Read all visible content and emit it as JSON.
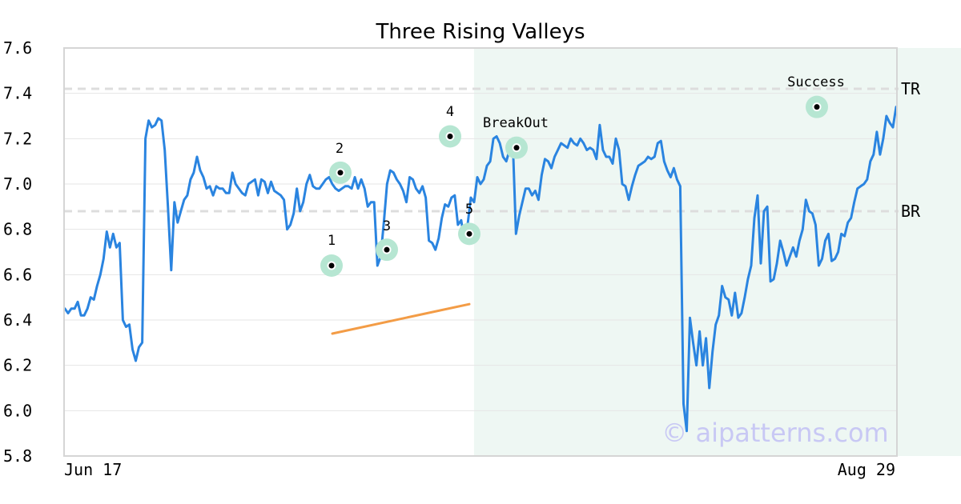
{
  "chart_data": {
    "type": "line",
    "title": "Three Rising Valleys",
    "watermark": "© aipatterns.com",
    "xlabel": "",
    "ylabel": "",
    "ylim": [
      5.8,
      7.6
    ],
    "yticks": [
      "5.8",
      "6.0",
      "6.2",
      "6.4",
      "6.6",
      "6.8",
      "7.0",
      "7.2",
      "7.4",
      "7.6"
    ],
    "x_tick_labels": {
      "start": "Jun 17",
      "end": "Aug 29"
    },
    "grid": "horizontal",
    "colors": {
      "line": "#2a84e0",
      "trend": "#f39c46",
      "marker_halo": "#b6e6d2",
      "pattern_zone": "#eef7f3",
      "level_line": "#dddddd",
      "watermark": "#c8c8f4"
    },
    "levels": [
      {
        "label": "TR",
        "value": 7.42
      },
      {
        "label": "BR",
        "value": 6.88
      }
    ],
    "pattern_zone": {
      "from_index": 127,
      "to_index": 370
    },
    "series": [
      {
        "values": [
          6.45,
          6.43,
          6.45,
          6.45,
          6.48,
          6.42,
          6.42,
          6.45,
          6.5,
          6.49,
          6.55,
          6.6,
          6.67,
          6.79,
          6.72,
          6.78,
          6.72,
          6.74,
          6.4,
          6.37,
          6.38,
          6.27,
          6.22,
          6.28,
          6.3,
          7.2,
          7.28,
          7.25,
          7.26,
          7.29,
          7.28,
          7.15,
          6.9,
          6.62,
          6.92,
          6.83,
          6.88,
          6.93,
          6.95,
          7.02,
          7.05,
          7.12,
          7.06,
          7.03,
          6.98,
          6.99,
          6.95,
          6.99,
          6.98,
          6.98,
          6.96,
          6.96,
          7.05,
          7.0,
          6.98,
          6.96,
          6.95,
          7.0,
          7.01,
          7.02,
          6.95,
          7.02,
          7.01,
          6.96,
          7.01,
          6.97,
          6.96,
          6.95,
          6.93,
          6.8,
          6.82,
          6.87,
          6.98,
          6.88,
          6.92,
          7.0,
          7.04,
          6.99,
          6.98,
          6.98,
          7.0,
          7.02,
          7.03,
          7.0,
          6.98,
          6.97,
          6.98,
          6.99,
          6.99,
          6.98,
          7.03,
          6.98,
          7.02,
          6.98,
          6.9,
          6.92,
          6.92,
          6.64,
          6.68,
          6.83,
          7.0,
          7.06,
          7.05,
          7.02,
          7.0,
          6.97,
          6.92,
          7.03,
          7.02,
          6.98,
          6.96,
          6.99,
          6.94,
          6.75,
          6.74,
          6.71,
          6.76,
          6.85,
          6.91,
          6.9,
          6.94,
          6.95,
          6.82,
          6.84,
          6.75,
          6.82,
          6.94,
          6.92,
          7.03,
          7.0,
          7.02,
          7.08,
          7.1,
          7.2,
          7.21,
          7.18,
          7.12,
          7.1,
          7.15,
          7.2,
          6.78,
          6.86,
          6.92,
          6.98,
          6.98,
          6.95,
          6.97,
          6.93,
          7.04,
          7.11,
          7.1,
          7.07,
          7.12,
          7.15,
          7.18,
          7.17,
          7.16,
          7.2,
          7.18,
          7.17,
          7.2,
          7.18,
          7.15,
          7.16,
          7.15,
          7.11,
          7.26,
          7.15,
          7.12,
          7.12,
          7.09,
          7.2,
          7.15,
          7.0,
          6.99,
          6.93,
          6.99,
          7.04,
          7.08,
          7.09,
          7.1,
          7.12,
          7.11,
          7.12,
          7.18,
          7.19,
          7.1,
          7.06,
          7.03,
          7.07,
          7.02,
          6.99,
          6.03,
          5.91,
          6.41,
          6.3,
          6.2,
          6.35,
          6.2,
          6.32,
          6.1,
          6.26,
          6.38,
          6.42,
          6.55,
          6.5,
          6.49,
          6.42,
          6.52,
          6.41,
          6.43,
          6.5,
          6.58,
          6.64,
          6.85,
          6.95,
          6.65,
          6.88,
          6.9,
          6.57,
          6.58,
          6.65,
          6.75,
          6.7,
          6.64,
          6.68,
          6.72,
          6.68,
          6.75,
          6.8,
          6.93,
          6.88,
          6.87,
          6.82,
          6.64,
          6.67,
          6.75,
          6.78,
          6.66,
          6.67,
          6.7,
          6.78,
          6.77,
          6.83,
          6.85,
          6.92,
          6.98,
          6.99,
          7.0,
          7.02,
          7.1,
          7.13,
          7.23,
          7.13,
          7.2,
          7.3,
          7.27,
          7.25,
          7.34
        ]
      },
      {
        "name": "",
        "values": [
          6.34,
          6.47
        ]
      }
    ],
    "annotations": [
      {
        "label": "1",
        "value": 6.64
      },
      {
        "label": "2",
        "value": 7.05
      },
      {
        "label": "3",
        "value": 6.71
      },
      {
        "label": "4",
        "value": 7.21
      },
      {
        "label": "5",
        "value": 6.78
      },
      {
        "label": "BreakOut",
        "value": 7.16
      },
      {
        "label": "Success",
        "value": 7.34
      }
    ]
  }
}
